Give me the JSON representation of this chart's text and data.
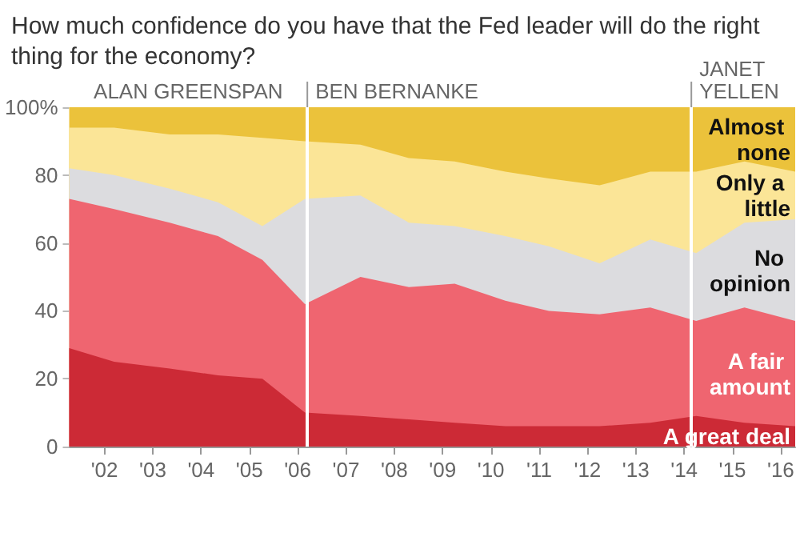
{
  "chart_data": {
    "type": "area",
    "stacked": true,
    "title": "How much confidence do you have that the Fed leader will do the right thing for the economy?",
    "x": [
      2001.27,
      2002.2,
      2003.35,
      2004.35,
      2005.27,
      2006.15,
      2007.3,
      2008.3,
      2009.25,
      2010.3,
      2011.2,
      2012.25,
      2013.3,
      2014.25,
      2015.25,
      2016.3
    ],
    "series": [
      {
        "name": "A great deal",
        "color": "#cc2a36",
        "values": [
          29,
          25,
          23,
          21,
          20,
          10,
          9,
          8,
          7,
          6,
          6,
          6,
          7,
          9,
          7,
          6
        ]
      },
      {
        "name": "A fair amount",
        "color": "#ef6570",
        "values": [
          44,
          45,
          43,
          41,
          35,
          32,
          41,
          39,
          41,
          37,
          34,
          33,
          34,
          28,
          34,
          31
        ]
      },
      {
        "name": "No opinion",
        "color": "#dcdcdf",
        "values": [
          9,
          10,
          10,
          10,
          10,
          31,
          24,
          19,
          17,
          19,
          19,
          15,
          20,
          20,
          25,
          30
        ]
      },
      {
        "name": "Only a little",
        "color": "#fbe597",
        "values": [
          12,
          14,
          16,
          20,
          26,
          17,
          15,
          19,
          19,
          19,
          20,
          23,
          20,
          24,
          18,
          14
        ]
      },
      {
        "name": "Almost none",
        "color": "#ebc23b",
        "values": [
          6,
          6,
          8,
          8,
          9,
          10,
          11,
          15,
          16,
          19,
          21,
          23,
          19,
          19,
          16,
          19
        ]
      }
    ],
    "xlim": [
      2001.27,
      2016.3
    ],
    "xticks": [
      {
        "value": 2002,
        "label": "'02"
      },
      {
        "value": 2003,
        "label": "'03"
      },
      {
        "value": 2004,
        "label": "'04"
      },
      {
        "value": 2005,
        "label": "'05"
      },
      {
        "value": 2006,
        "label": "'06"
      },
      {
        "value": 2007,
        "label": "'07"
      },
      {
        "value": 2008,
        "label": "'08"
      },
      {
        "value": 2009,
        "label": "'09"
      },
      {
        "value": 2010,
        "label": "'10"
      },
      {
        "value": 2011,
        "label": "'11"
      },
      {
        "value": 2012,
        "label": "'12"
      },
      {
        "value": 2013,
        "label": "'13"
      },
      {
        "value": 2014,
        "label": "'14"
      },
      {
        "value": 2015,
        "label": "'15"
      },
      {
        "value": 2016,
        "label": "'16"
      }
    ],
    "ylim": [
      0,
      100
    ],
    "yticks": [
      0,
      20,
      40,
      60,
      80,
      {
        "value": 100,
        "label": "100%"
      }
    ],
    "legend": false,
    "ref_lines": [
      {
        "axis": "x",
        "value": 2006.2,
        "label": "BEN BERNANKE",
        "color": "#ffffff"
      },
      {
        "axis": "x",
        "value": 2014.15,
        "label": "JANET YELLEN",
        "color": "#ffffff"
      }
    ],
    "annotations": [
      "ALAN GREENSPAN"
    ]
  }
}
